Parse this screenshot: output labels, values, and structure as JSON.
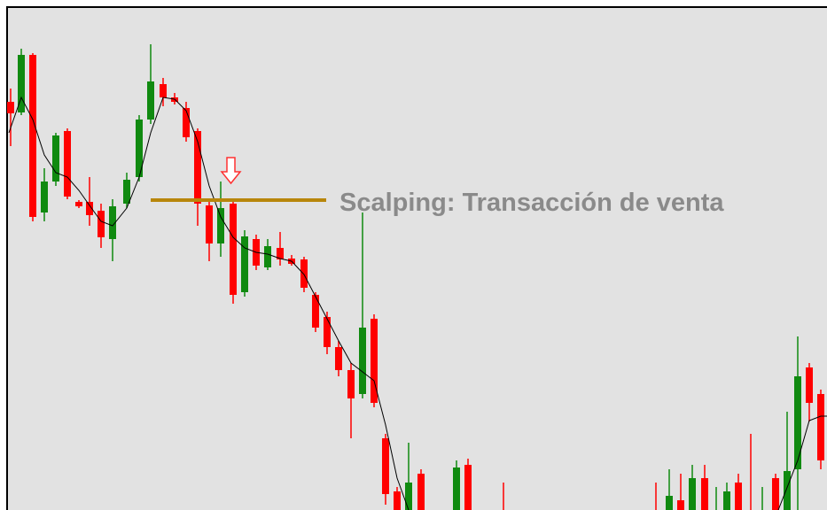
{
  "annotation": {
    "text": "Scalping: Transacción de venta"
  }
}
